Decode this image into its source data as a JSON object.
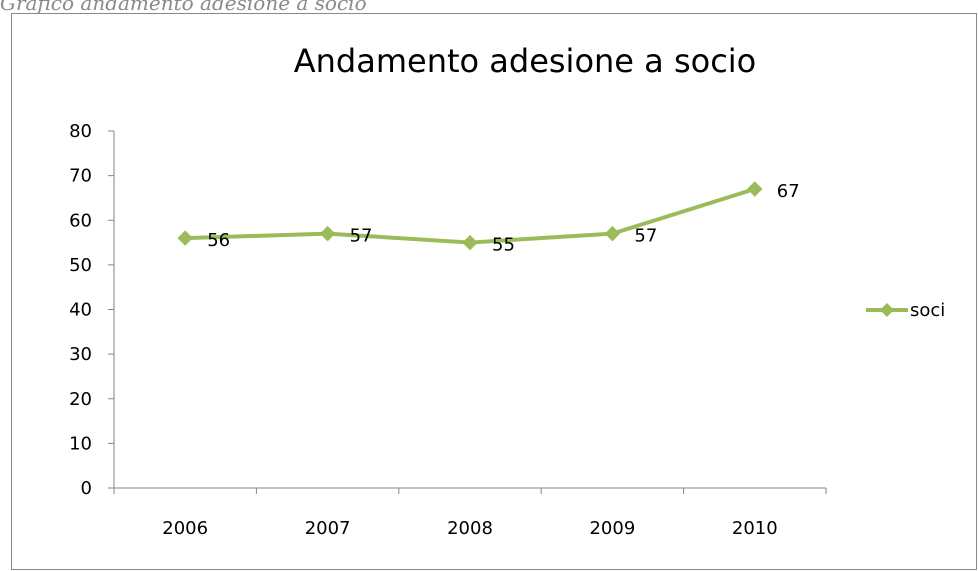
{
  "caption": "Grafico andamento adesione a socio",
  "chart_data": {
    "type": "line",
    "title": "Andamento adesione a socio",
    "xlabel": "",
    "ylabel": "",
    "categories": [
      "2006",
      "2007",
      "2008",
      "2009",
      "2010"
    ],
    "series": [
      {
        "name": "soci",
        "values": [
          56,
          57,
          55,
          57,
          67
        ],
        "color": "#9BBB59"
      }
    ],
    "data_labels": [
      "56",
      "57",
      "55",
      "57",
      "67"
    ],
    "ylim": [
      0,
      80
    ],
    "yticks": [
      0,
      10,
      20,
      30,
      40,
      50,
      60,
      70,
      80
    ],
    "ytick_labels": [
      "0",
      "10",
      "20",
      "30",
      "40",
      "50",
      "60",
      "70",
      "80"
    ],
    "grid": false,
    "legend": "right",
    "marker": "diamond"
  }
}
